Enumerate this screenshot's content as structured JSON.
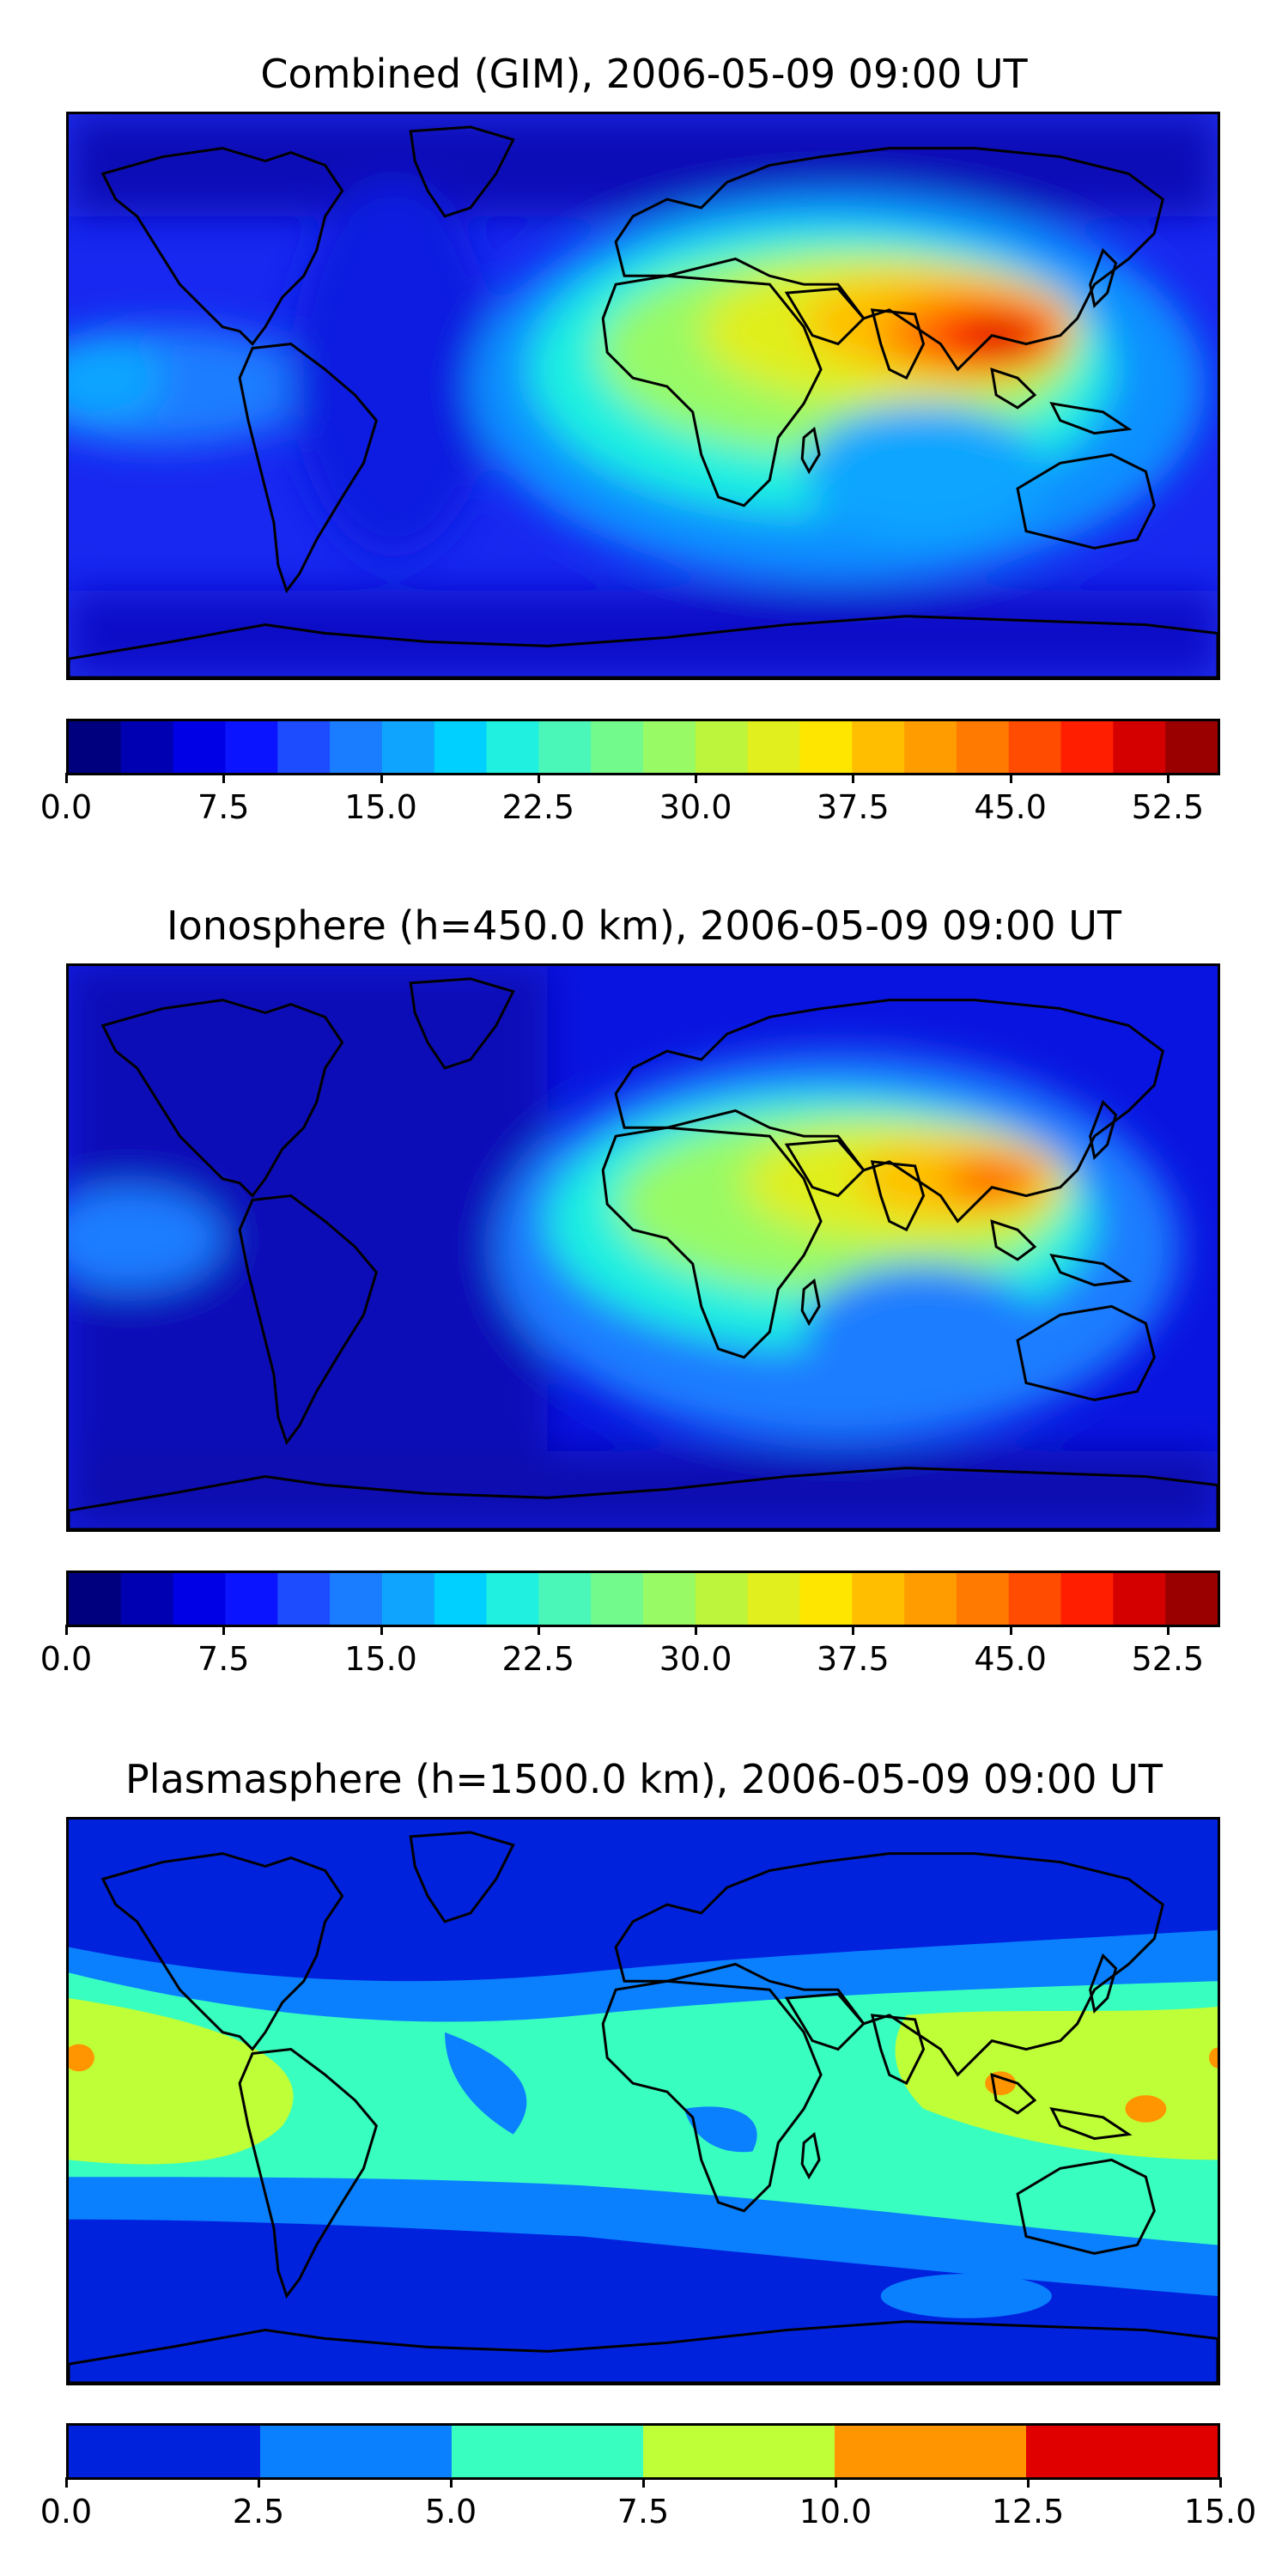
{
  "panels": [
    {
      "title": "Combined (GIM), 2006-05-09 09:00 UT",
      "colorbar": {
        "vmin": 0,
        "vmax": 55,
        "colors": [
          "#00007f",
          "#0000b3",
          "#0000e6",
          "#0a14ff",
          "#1d4cff",
          "#1a7dff",
          "#0fa5ff",
          "#00d0ff",
          "#1ff0e0",
          "#4af7b8",
          "#73fa8c",
          "#98fa65",
          "#bcf53c",
          "#e0ef1d",
          "#ffe600",
          "#ffbf00",
          "#ff9c00",
          "#ff7a00",
          "#ff4c00",
          "#ff1e00",
          "#d40000",
          "#9a0000"
        ],
        "tick_labels": [
          "0.0",
          "7.5",
          "15.0",
          "22.5",
          "30.0",
          "37.5",
          "45.0",
          "52.5"
        ],
        "tick_values": [
          0,
          7.5,
          15,
          22.5,
          30,
          37.5,
          45,
          52.5
        ]
      }
    },
    {
      "title": "Ionosphere  (h=450.0 km), 2006-05-09 09:00 UT",
      "colorbar": {
        "vmin": 0,
        "vmax": 55,
        "colors": [
          "#00007f",
          "#0000b3",
          "#0000e6",
          "#0a14ff",
          "#1d4cff",
          "#1a7dff",
          "#0fa5ff",
          "#00d0ff",
          "#1ff0e0",
          "#4af7b8",
          "#73fa8c",
          "#98fa65",
          "#bcf53c",
          "#e0ef1d",
          "#ffe600",
          "#ffbf00",
          "#ff9c00",
          "#ff7a00",
          "#ff4c00",
          "#ff1e00",
          "#d40000",
          "#9a0000"
        ],
        "tick_labels": [
          "0.0",
          "7.5",
          "15.0",
          "22.5",
          "30.0",
          "37.5",
          "45.0",
          "52.5"
        ],
        "tick_values": [
          0,
          7.5,
          15,
          22.5,
          30,
          37.5,
          45,
          52.5
        ]
      }
    },
    {
      "title": "Plasmasphere (h=1500.0 km), 2006-05-09 09:00 UT",
      "colorbar": {
        "vmin": 0,
        "vmax": 15,
        "colors": [
          "#0022dd",
          "#0a80ff",
          "#38ffbf",
          "#bfff38",
          "#ff9500",
          "#e00000"
        ],
        "tick_labels": [
          "0.0",
          "2.5",
          "5.0",
          "7.5",
          "10.0",
          "12.5",
          "15.0"
        ],
        "tick_values": [
          0,
          2.5,
          5,
          7.5,
          10,
          12.5,
          15
        ]
      }
    }
  ]
}
